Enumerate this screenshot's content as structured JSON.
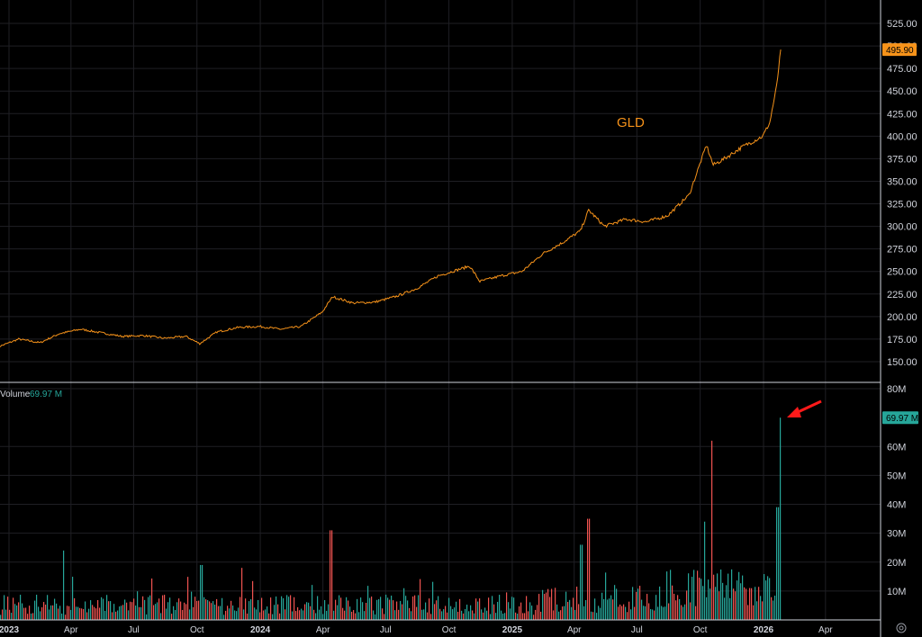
{
  "chart_data": [
    {
      "type": "line",
      "symbol": "GLD",
      "last_price_label": "495.90",
      "last_price": 495.9,
      "colors": {
        "line": "#f7931a",
        "badge": "#f7931a"
      },
      "y_ticks": [
        "150.00",
        "175.00",
        "200.00",
        "225.00",
        "250.00",
        "275.00",
        "300.00",
        "325.00",
        "350.00",
        "375.00",
        "400.00",
        "425.00",
        "450.00",
        "475.00",
        "500.00",
        "525.00"
      ],
      "ylim": [
        125,
        535
      ],
      "x": [
        "2022-12-15",
        "2023-01-15",
        "2023-02-15",
        "2023-03-15",
        "2023-04-15",
        "2023-05-15",
        "2023-06-15",
        "2023-07-15",
        "2023-08-15",
        "2023-09-15",
        "2023-10-05",
        "2023-10-30",
        "2023-11-30",
        "2023-12-31",
        "2024-01-31",
        "2024-02-29",
        "2024-03-31",
        "2024-04-15",
        "2024-05-15",
        "2024-06-15",
        "2024-07-15",
        "2024-08-15",
        "2024-09-15",
        "2024-10-31",
        "2024-11-15",
        "2024-12-15",
        "2025-01-15",
        "2025-02-15",
        "2025-03-15",
        "2025-04-10",
        "2025-04-22",
        "2025-05-15",
        "2025-06-15",
        "2025-07-15",
        "2025-08-15",
        "2025-09-15",
        "2025-10-10",
        "2025-10-20",
        "2025-11-05",
        "2025-12-01",
        "2025-12-31",
        "2026-01-10",
        "2026-01-20",
        "2026-01-26"
      ],
      "y": [
        166,
        175,
        171,
        181,
        186,
        182,
        178,
        179,
        176,
        178,
        170,
        183,
        188,
        189,
        186,
        189,
        205,
        222,
        215,
        216,
        222,
        231,
        245,
        256,
        239,
        245,
        250,
        270,
        282,
        295,
        318,
        300,
        308,
        305,
        312,
        335,
        390,
        368,
        375,
        388,
        400,
        415,
        455,
        496
      ],
      "volume": {
        "label": "Volume",
        "last_label": "69.97 M",
        "last_badge": "69.97 M",
        "last": 69.97,
        "y_ticks": [
          "10M",
          "20M",
          "30M",
          "40M",
          "50M",
          "60M",
          "80M"
        ],
        "ylim": [
          0,
          80
        ],
        "colors": {
          "up": "#26a69a",
          "down": "#ef5350"
        },
        "peaks": [
          {
            "x": "2023-03-20",
            "value": 24,
            "direction": "up"
          },
          {
            "x": "2023-10-06",
            "value": 19,
            "direction": "up"
          },
          {
            "x": "2023-12-04",
            "value": 18,
            "direction": "down"
          },
          {
            "x": "2024-04-12",
            "value": 31,
            "direction": "down"
          },
          {
            "x": "2025-04-10",
            "value": 26,
            "direction": "up"
          },
          {
            "x": "2025-04-21",
            "value": 35,
            "direction": "down"
          },
          {
            "x": "2025-10-07",
            "value": 34,
            "direction": "up"
          },
          {
            "x": "2025-10-17",
            "value": 62,
            "direction": "down"
          },
          {
            "x": "2026-01-20",
            "value": 39,
            "direction": "up"
          },
          {
            "x": "2026-01-26",
            "value": 69.97,
            "direction": "up"
          }
        ]
      },
      "x_ticks": [
        {
          "label": "2023",
          "date": "2023-01-01",
          "bold": true
        },
        {
          "label": "Apr",
          "date": "2023-04-01",
          "bold": false
        },
        {
          "label": "Jul",
          "date": "2023-07-01",
          "bold": false
        },
        {
          "label": "Oct",
          "date": "2023-10-01",
          "bold": false
        },
        {
          "label": "2024",
          "date": "2024-01-01",
          "bold": true
        },
        {
          "label": "Apr",
          "date": "2024-04-01",
          "bold": false
        },
        {
          "label": "Jul",
          "date": "2024-07-01",
          "bold": false
        },
        {
          "label": "Oct",
          "date": "2024-10-01",
          "bold": false
        },
        {
          "label": "2025",
          "date": "2025-01-01",
          "bold": true
        },
        {
          "label": "Apr",
          "date": "2025-04-01",
          "bold": false
        },
        {
          "label": "Jul",
          "date": "2025-07-01",
          "bold": false
        },
        {
          "label": "Oct",
          "date": "2025-10-01",
          "bold": false
        },
        {
          "label": "2026",
          "date": "2026-01-01",
          "bold": true
        },
        {
          "label": "Apr",
          "date": "2026-04-01",
          "bold": false
        }
      ],
      "annotation": {
        "type": "arrow",
        "points_to": "2026-01-26",
        "color": "#ff1a1a"
      },
      "icons": [
        "settings-gear-icon"
      ]
    }
  ]
}
